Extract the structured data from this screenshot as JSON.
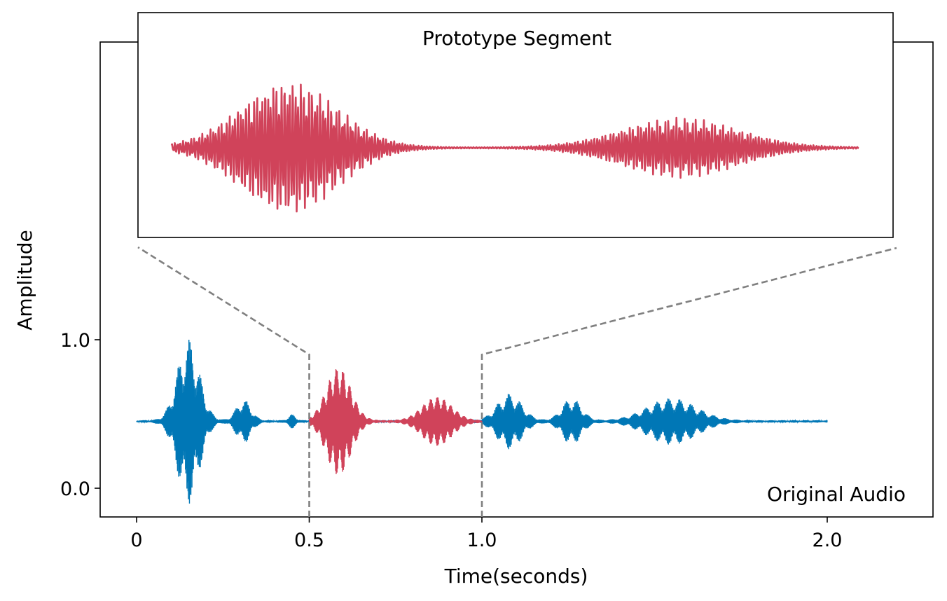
{
  "chart_data": {
    "type": "line",
    "xlabel": "Time(seconds)",
    "ylabel": "Amplitude",
    "xlim": [
      -0.1,
      2.3
    ],
    "ylim": [
      -0.2,
      3.0
    ],
    "xticks": [
      {
        "value": 0,
        "label": "0"
      },
      {
        "value": 0.5,
        "label": "0.5"
      },
      {
        "value": 1.0,
        "label": "1.0"
      },
      {
        "value": 2.0,
        "label": "2.0"
      }
    ],
    "yticks": [
      {
        "value": 0.0,
        "label": "0.0"
      },
      {
        "value": 1.0,
        "label": "1.0"
      }
    ],
    "baseline": 0.45,
    "main_annotation": "Original Audio",
    "series": [
      {
        "name": "Original Audio",
        "color": "#0077b6",
        "t_range": [
          0.0,
          2.0
        ],
        "envelope_bursts": [
          {
            "center": 0.15,
            "width": 0.045,
            "peak": 0.55
          },
          {
            "center": 0.31,
            "width": 0.03,
            "peak": 0.14
          },
          {
            "center": 0.45,
            "width": 0.015,
            "peak": 0.04
          },
          {
            "center": 1.08,
            "width": 0.05,
            "peak": 0.18
          },
          {
            "center": 1.26,
            "width": 0.04,
            "peak": 0.15
          },
          {
            "center": 1.55,
            "width": 0.1,
            "peak": 0.15
          }
        ]
      },
      {
        "name": "Prototype Segment",
        "color": "#d0435a",
        "t_range": [
          0.5,
          1.0
        ],
        "envelope_bursts": [
          {
            "center": 0.585,
            "width": 0.05,
            "peak": 0.36
          },
          {
            "center": 0.87,
            "width": 0.06,
            "peak": 0.16
          }
        ]
      }
    ],
    "zoom_inset": {
      "title": "Prototype Segment",
      "source_range": [
        0.5,
        1.0
      ],
      "source_y_top": 0.9,
      "connector_color": "#808080"
    }
  }
}
